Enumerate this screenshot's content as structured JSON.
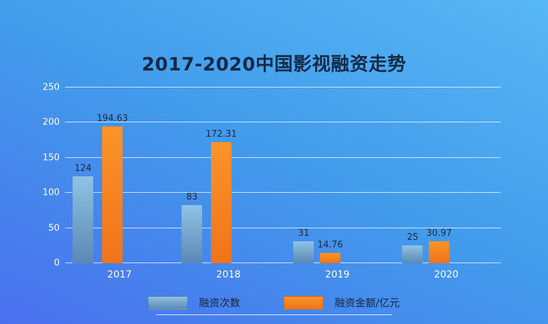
{
  "chart_data": {
    "type": "bar",
    "title": "2017-2020中国影视融资走势",
    "categories": [
      "2017",
      "2018",
      "2019",
      "2020"
    ],
    "series": [
      {
        "name": "融资次数",
        "values": [
          124,
          83,
          31,
          25
        ],
        "labels": [
          "124",
          "83",
          "31",
          "25"
        ],
        "color": "#6f9fc6",
        "color_top": "#8fc3e4",
        "color_bottom": "#5b88b4"
      },
      {
        "name": "融资金额/亿元",
        "values": [
          194.63,
          172.31,
          14.76,
          30.97
        ],
        "labels": [
          "194.63",
          "172.31",
          "14.76",
          "30.97"
        ],
        "color": "#f5821f",
        "color_top": "#fb9328",
        "color_bottom": "#f0741a"
      }
    ],
    "xlabel": "",
    "ylabel": "",
    "ylim": [
      0,
      250
    ],
    "yticks": [
      0,
      50,
      100,
      150,
      200,
      250
    ],
    "grid": true,
    "legend_position": "bottom"
  },
  "colors": {
    "background_top": "#58b7f5",
    "background_mid": "#429ceb",
    "background_bottom": "#4a70ef",
    "gridline": "#ffffff",
    "title_text": "#142a47",
    "value_label_text": "#1d2a3a",
    "axis_text": "#ffffff",
    "legend_text": "#16263f"
  }
}
